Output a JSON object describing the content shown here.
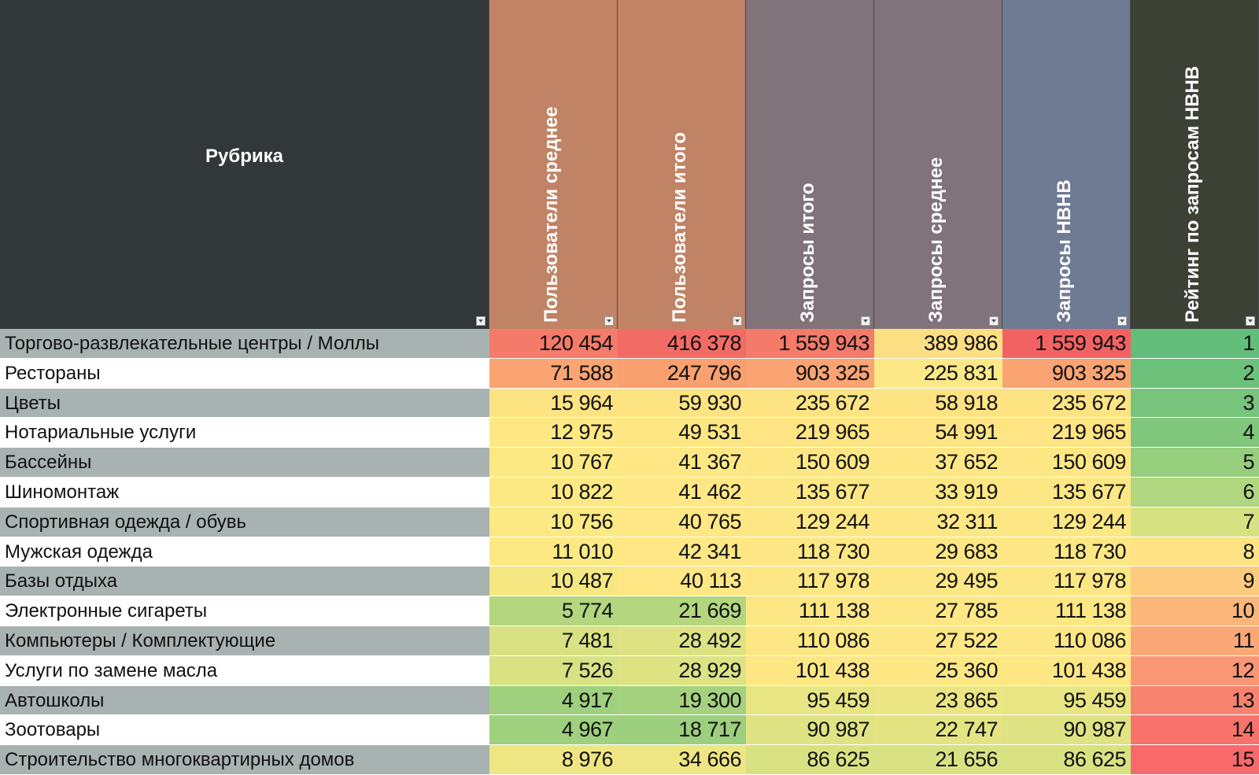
{
  "header": {
    "rubric": "Рубрика",
    "columns": [
      {
        "label": "Пользователи среднее",
        "color": "#c08366"
      },
      {
        "label": "Пользователи итого",
        "color": "#c08366"
      },
      {
        "label": "Запросы итого",
        "color": "#807379"
      },
      {
        "label": "Запросы среднее",
        "color": "#807379"
      },
      {
        "label": "Запросы НВНВ",
        "color": "#6e7b92"
      },
      {
        "label": "Рейтинг по запросам НВНВ",
        "color": "#3c4135"
      }
    ]
  },
  "rows": [
    {
      "name": "Торгово-развлекательные центры / Моллы",
      "cells": [
        "120 454",
        "416 378",
        "1 559 943",
        "389 986",
        "1 559 943",
        "1"
      ],
      "colors": [
        "#f47a6a",
        "#f36b65",
        "#f47a6a",
        "#fddf83",
        "#f36263",
        "#63be7b"
      ]
    },
    {
      "name": "Рестораны",
      "cells": [
        "71 588",
        "247 796",
        "903 325",
        "225 831",
        "903 325",
        "2"
      ],
      "colors": [
        "#f9a472",
        "#f8a06f",
        "#f9a472",
        "#fde888",
        "#f9a472",
        "#6cc17b"
      ]
    },
    {
      "name": "Цветы",
      "cells": [
        "15 964",
        "59 930",
        "235 672",
        "58 918",
        "235 672",
        "3"
      ],
      "colors": [
        "#fee382",
        "#fee382",
        "#fee382",
        "#fee382",
        "#fee382",
        "#77c47c"
      ]
    },
    {
      "name": "Нотариальные услуги",
      "cells": [
        "12 975",
        "49 531",
        "219 965",
        "54 991",
        "219 965",
        "4"
      ],
      "colors": [
        "#fee883",
        "#fee683",
        "#fee483",
        "#fee483",
        "#fee483",
        "#80c77d"
      ]
    },
    {
      "name": "Бассейны",
      "cells": [
        "10 767",
        "41 367",
        "150 609",
        "37 652",
        "150 609",
        "5"
      ],
      "colors": [
        "#fde983",
        "#fee784",
        "#fde784",
        "#fde784",
        "#fde784",
        "#97ce7e"
      ]
    },
    {
      "name": "Шиномонтаж",
      "cells": [
        "10 822",
        "41 462",
        "135 677",
        "33 919",
        "135 677",
        "6"
      ],
      "colors": [
        "#fde983",
        "#fee784",
        "#fde784",
        "#fde784",
        "#fde784",
        "#b0d67f"
      ]
    },
    {
      "name": "Спортивная одежда / обувь",
      "cells": [
        "10 756",
        "40 765",
        "129 244",
        "32 311",
        "129 244",
        "7"
      ],
      "colors": [
        "#fde983",
        "#fee784",
        "#fde784",
        "#fde784",
        "#fde784",
        "#d6e281"
      ]
    },
    {
      "name": "Мужская одежда",
      "cells": [
        "11 010",
        "42 341",
        "118 730",
        "29 683",
        "118 730",
        "8"
      ],
      "colors": [
        "#fde983",
        "#fee784",
        "#fde784",
        "#fde784",
        "#fde784",
        "#fde383"
      ]
    },
    {
      "name": "Базы отдыха",
      "cells": [
        "10 487",
        "40 113",
        "117 978",
        "29 495",
        "117 978",
        "9"
      ],
      "colors": [
        "#f5e883",
        "#fee784",
        "#fde784",
        "#fde784",
        "#fde784",
        "#fdcb7d"
      ]
    },
    {
      "name": "Электронные сигареты",
      "cells": [
        "5 774",
        "21 669",
        "111 138",
        "27 785",
        "111 138",
        "10"
      ],
      "colors": [
        "#b3d67f",
        "#b3d67f",
        "#fde784",
        "#fde784",
        "#fde784",
        "#fbb779"
      ]
    },
    {
      "name": "Компьютеры / Комплектующие",
      "cells": [
        "7 481",
        "28 492",
        "110 086",
        "27 522",
        "110 086",
        "11"
      ],
      "colors": [
        "#d8e282",
        "#dde383",
        "#fde784",
        "#fde784",
        "#fde784",
        "#faa876"
      ]
    },
    {
      "name": "Услуги по замене масла",
      "cells": [
        "7 526",
        "28 929",
        "101 438",
        "25 360",
        "101 438",
        "12"
      ],
      "colors": [
        "#d8e282",
        "#dde383",
        "#fde784",
        "#fde784",
        "#fde784",
        "#f99673"
      ]
    },
    {
      "name": "Автошколы",
      "cells": [
        "4 917",
        "19 300",
        "95 459",
        "23 865",
        "95 459",
        "13"
      ],
      "colors": [
        "#9ed07e",
        "#a5d27e",
        "#e8e583",
        "#ece583",
        "#e8e583",
        "#f8836e"
      ]
    },
    {
      "name": "Зоотовары",
      "cells": [
        "4 967",
        "18 717",
        "90 987",
        "22 747",
        "90 987",
        "14"
      ],
      "colors": [
        "#9ed07e",
        "#9ccf7e",
        "#e0e383",
        "#e4e483",
        "#e0e383",
        "#f8736b"
      ]
    },
    {
      "name": "Строительство многоквартирных домов",
      "cells": [
        "8 976",
        "34 666",
        "86 625",
        "21 656",
        "86 625",
        "15"
      ],
      "colors": [
        "#eee683",
        "#eee683",
        "#d8e282",
        "#d8e282",
        "#d8e282",
        "#f8696b"
      ]
    }
  ]
}
